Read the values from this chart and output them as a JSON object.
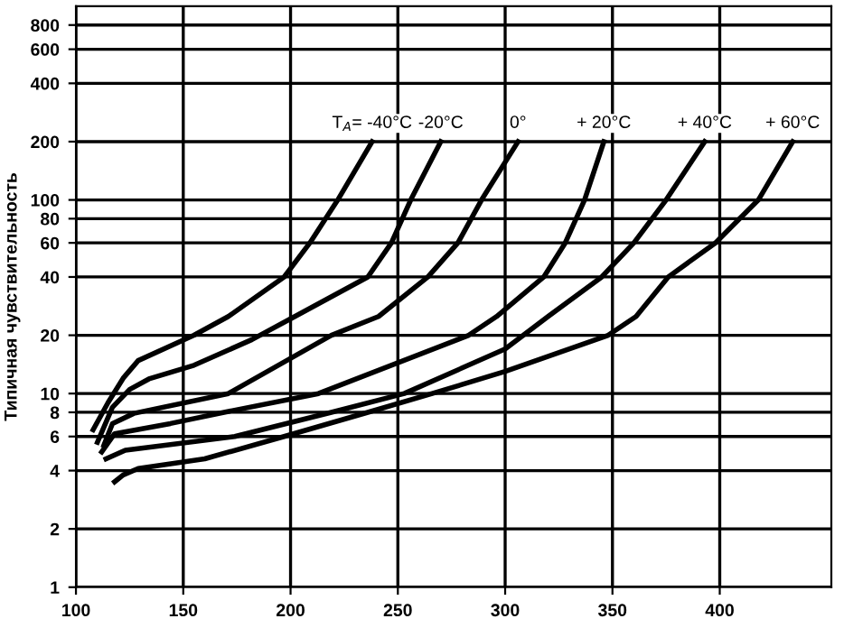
{
  "chart_data": {
    "type": "line",
    "ylabel": "Типичная чувствительность",
    "log": "y",
    "grid": true,
    "marker": "none",
    "line_style": "solid",
    "xlim": [
      100,
      452
    ],
    "xticks": [
      100,
      150,
      200,
      250,
      300,
      350,
      400
    ],
    "ylim": [
      1,
      1000
    ],
    "yticks": [
      1,
      2,
      4,
      6,
      8,
      10,
      20,
      40,
      60,
      80,
      100,
      200,
      400,
      600,
      800
    ],
    "series": [
      {
        "color": "#000000",
        "x": [
          108,
          115,
          122,
          129,
          155,
          171,
          197,
          209,
          222,
          238
        ],
        "values": [
          6.5,
          9,
          12,
          14.8,
          20,
          25,
          40,
          60,
          100,
          200
        ]
      },
      {
        "color": "#000000",
        "x": [
          110,
          117,
          125,
          134,
          155,
          182,
          202,
          236,
          247,
          256,
          270
        ],
        "values": [
          5.6,
          8.5,
          10.5,
          11.9,
          14,
          19,
          25,
          40,
          60,
          100,
          200
        ]
      },
      {
        "color": "#000000",
        "x": [
          113,
          117,
          127,
          171,
          219,
          241,
          264,
          278,
          289,
          306
        ],
        "values": [
          5.4,
          7,
          7.9,
          10,
          20,
          25,
          40,
          60,
          100,
          200
        ]
      },
      {
        "color": "#000000",
        "x": [
          112,
          118,
          144,
          169,
          213,
          283,
          296,
          318,
          328,
          337,
          346
        ],
        "values": [
          5,
          6.2,
          7,
          8,
          10,
          20,
          25,
          40,
          60,
          100,
          200
        ]
      },
      {
        "color": "#000000",
        "x": [
          114,
          123,
          174,
          219,
          253,
          300,
          320,
          345,
          360,
          375,
          393
        ],
        "values": [
          4.6,
          5.1,
          6,
          8,
          10,
          17,
          25,
          40,
          60,
          100,
          200
        ]
      },
      {
        "color": "#000000",
        "x": [
          118,
          122,
          129,
          160,
          197,
          236,
          266,
          300,
          348,
          361,
          376,
          398,
          418,
          434
        ],
        "values": [
          3.5,
          3.8,
          4.1,
          4.6,
          6,
          8,
          10,
          13,
          20,
          25,
          40,
          60,
          100,
          200
        ]
      }
    ],
    "annotations": [
      {
        "text": "T$_{A}$= -40°C",
        "x": 238,
        "y": 200
      },
      {
        "text": "-20°C",
        "x": 270,
        "y": 200
      },
      {
        "text": "0°",
        "x": 306,
        "y": 200
      },
      {
        "text": "+ 20°C",
        "x": 346,
        "y": 200
      },
      {
        "text": "+ 40°C",
        "x": 393,
        "y": 200
      },
      {
        "text": "+ 60°C",
        "x": 434,
        "y": 200
      }
    ]
  }
}
